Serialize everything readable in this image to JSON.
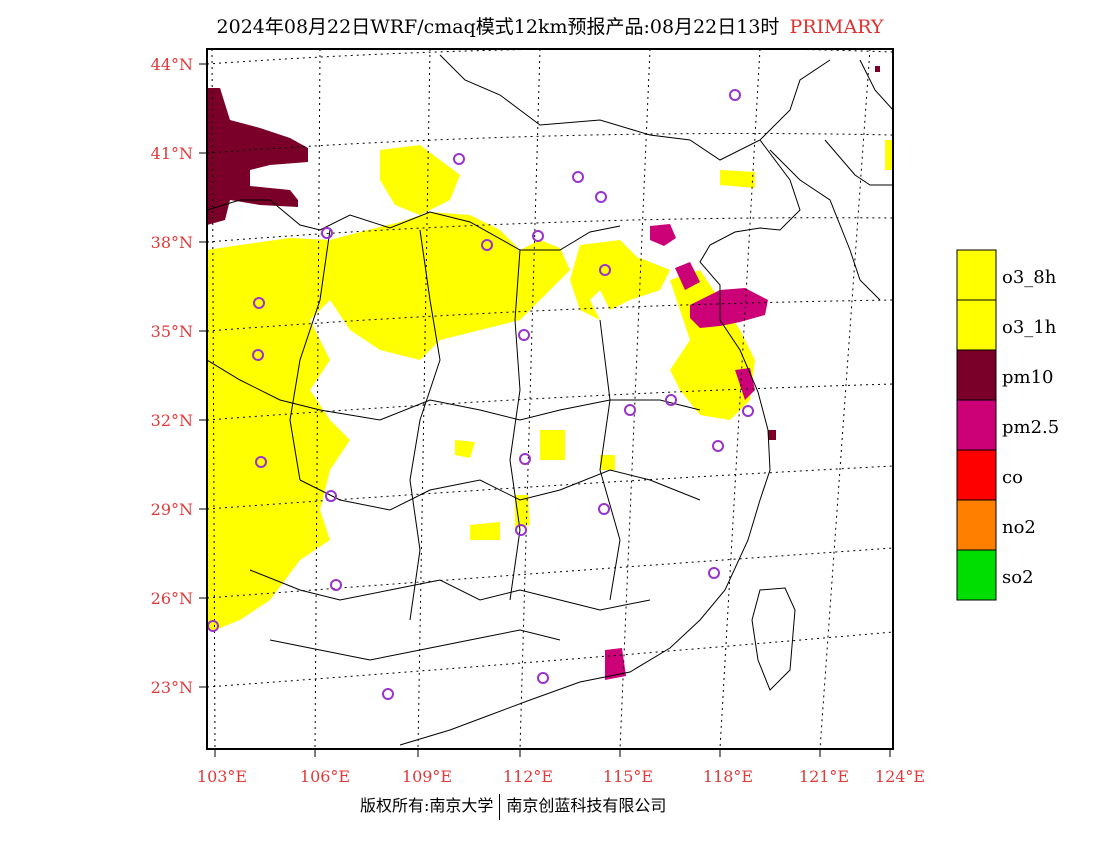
{
  "title": {
    "main": "2024年08月22日WRF/cmaq模式12km预报产品:08月22日13时",
    "tag": "PRIMARY",
    "tag_color": "#e03a3a"
  },
  "footer": {
    "left": "版权所有:南京大学",
    "right": "南京创蓝科技有限公司"
  },
  "map": {
    "lat_labels": [
      "44°N",
      "41°N",
      "38°N",
      "35°N",
      "32°N",
      "29°N",
      "26°N",
      "23°N"
    ],
    "lon_labels": [
      "103°E",
      "106°E",
      "109°E",
      "112°E",
      "115°E",
      "118°E",
      "121°E",
      "124°E"
    ]
  },
  "legend": [
    {
      "label": "o3_8h",
      "color": "#ffff00"
    },
    {
      "label": "o3_1h",
      "color": "#ffff00"
    },
    {
      "label": "pm10",
      "color": "#7a0029"
    },
    {
      "label": "pm2.5",
      "color": "#cc0077"
    },
    {
      "label": "co",
      "color": "#ff0000"
    },
    {
      "label": "no2",
      "color": "#ff7f00"
    },
    {
      "label": "so2",
      "color": "#00dd00"
    }
  ],
  "colors": {
    "o3": "#ffff00",
    "pm10": "#7a0029",
    "pm25": "#cc0077",
    "station_ring": "#9933cc",
    "label_red": "#e03a3a"
  }
}
